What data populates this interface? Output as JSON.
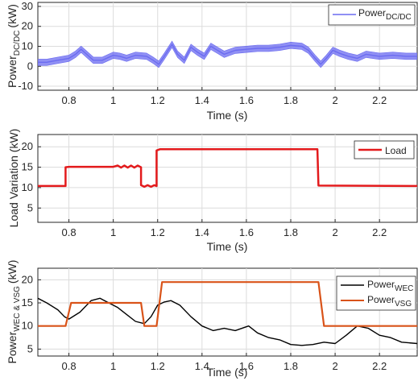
{
  "colors": {
    "blue": "#6b6bf0",
    "red": "#e31a1c",
    "black": "#000000",
    "orange": "#d95319"
  },
  "chart_data": [
    {
      "type": "line",
      "xlabel": "Time (s)",
      "ylabel_main": "Power",
      "ylabel_sub": "DC/DC",
      "ylabel_unit": "(kW)",
      "xlim": [
        0.66,
        2.37
      ],
      "ylim": [
        -12,
        32
      ],
      "xticks": [
        0.8,
        1,
        1.2,
        1.4,
        1.6,
        1.8,
        2,
        2.2
      ],
      "xtick_labels": [
        "0.8",
        "1",
        "1.2",
        "1.4",
        "1.6",
        "1.8",
        "2",
        "2.2"
      ],
      "yticks": [
        -10,
        0,
        10,
        20,
        30
      ],
      "ytick_labels": [
        "-10",
        "0",
        "10",
        "20",
        "30"
      ],
      "grid": true,
      "legend": "top-right",
      "series": [
        {
          "name_main": "Power",
          "name_sub": "DC/DC",
          "color": "#6b6bf0",
          "band": 1.6,
          "x": [
            0.66,
            0.7,
            0.75,
            0.8,
            0.83,
            0.855,
            0.88,
            0.91,
            0.95,
            1.0,
            1.03,
            1.06,
            1.1,
            1.15,
            1.18,
            1.205,
            1.23,
            1.265,
            1.29,
            1.32,
            1.35,
            1.38,
            1.41,
            1.44,
            1.47,
            1.5,
            1.55,
            1.6,
            1.65,
            1.7,
            1.75,
            1.8,
            1.85,
            1.88,
            1.91,
            1.935,
            1.96,
            1.99,
            2.02,
            2.06,
            2.1,
            2.14,
            2.2,
            2.26,
            2.32,
            2.37
          ],
          "y": [
            2,
            2,
            3,
            4,
            6,
            8.5,
            6,
            3,
            3,
            5.5,
            5,
            4,
            5.5,
            5,
            3,
            1,
            5,
            11,
            6,
            3,
            9.5,
            7,
            5,
            10,
            8,
            6,
            8,
            8.5,
            9,
            9,
            9.5,
            10.5,
            10,
            8,
            4,
            1,
            4,
            8,
            6.5,
            5,
            4,
            6,
            5,
            5.5,
            5,
            5
          ]
        }
      ]
    },
    {
      "type": "line",
      "xlabel": "Time (s)",
      "ylabel": "Load Variation (kW)",
      "xlim": [
        0.66,
        2.37
      ],
      "ylim": [
        1.5,
        23
      ],
      "xticks": [
        0.8,
        1,
        1.2,
        1.4,
        1.6,
        1.8,
        2,
        2.2
      ],
      "xtick_labels": [
        "0.8",
        "1",
        "1.2",
        "1.4",
        "1.6",
        "1.8",
        "2",
        "2.2"
      ],
      "yticks": [
        5,
        10,
        15,
        20
      ],
      "ytick_labels": [
        "5",
        "10",
        "15",
        "20"
      ],
      "grid": true,
      "legend": "top-right",
      "series": [
        {
          "name": "Load",
          "color": "#e31a1c",
          "x": [
            0.66,
            0.785,
            0.785,
            0.8,
            1.0,
            1.02,
            1.035,
            1.05,
            1.065,
            1.08,
            1.095,
            1.11,
            1.125,
            1.125,
            1.14,
            1.155,
            1.17,
            1.185,
            1.195,
            1.195,
            1.21,
            1.5,
            1.92,
            1.925,
            2.37
          ],
          "y": [
            10.4,
            10.4,
            15,
            15.1,
            15.1,
            15.4,
            14.9,
            15.4,
            14.9,
            15.4,
            14.9,
            15.4,
            15,
            10.6,
            10.2,
            10.6,
            10.2,
            10.6,
            10.4,
            19.1,
            19.4,
            19.4,
            19.4,
            10.5,
            10.4
          ]
        }
      ]
    },
    {
      "type": "line",
      "xlabel": "Time (s)",
      "ylabel_main": "Power",
      "ylabel_sub": "WEC & VSG",
      "ylabel_unit": "(kW)",
      "xlim": [
        0.66,
        2.37
      ],
      "ylim": [
        3.5,
        22.5
      ],
      "xticks": [
        0.8,
        1,
        1.2,
        1.4,
        1.6,
        1.8,
        2,
        2.2
      ],
      "xtick_labels": [
        "0.8",
        "1",
        "1.2",
        "1.4",
        "1.6",
        "1.8",
        "2",
        "2.2"
      ],
      "yticks": [
        5,
        10,
        15,
        20
      ],
      "ytick_labels": [
        "5",
        "10",
        "15",
        "20"
      ],
      "grid": true,
      "legend": "top-right",
      "series": [
        {
          "name_main": "Power",
          "name_sub": "WEC",
          "color": "#000000",
          "x": [
            0.66,
            0.7,
            0.75,
            0.78,
            0.8,
            0.85,
            0.9,
            0.94,
            0.98,
            1.02,
            1.06,
            1.1,
            1.14,
            1.17,
            1.2,
            1.23,
            1.26,
            1.3,
            1.35,
            1.4,
            1.45,
            1.5,
            1.55,
            1.58,
            1.61,
            1.65,
            1.7,
            1.75,
            1.8,
            1.85,
            1.9,
            1.95,
            2.0,
            2.05,
            2.1,
            2.15,
            2.2,
            2.25,
            2.3,
            2.37
          ],
          "y": [
            16,
            15,
            13.5,
            12,
            11.5,
            13,
            15.5,
            16,
            15,
            14,
            12.5,
            11,
            10.5,
            12,
            14.5,
            15.2,
            15.5,
            14.5,
            12,
            10,
            9,
            9.5,
            9,
            9.5,
            10,
            8.5,
            7.5,
            7,
            6,
            5.8,
            6,
            6.5,
            6.2,
            8,
            10,
            9.5,
            8,
            7.5,
            6.5,
            6.2
          ]
        },
        {
          "name_main": "Power",
          "name_sub": "VSG",
          "color": "#d95319",
          "x": [
            0.66,
            0.785,
            0.81,
            0.9,
            1.0,
            1.1,
            1.125,
            1.14,
            1.19,
            1.195,
            1.22,
            1.3,
            1.5,
            1.7,
            1.9,
            1.925,
            1.95,
            2.0,
            2.2,
            2.37
          ],
          "y": [
            10,
            10,
            15,
            15,
            15,
            15,
            15,
            10,
            10,
            10,
            19.5,
            19.5,
            19.5,
            19.5,
            19.5,
            19.5,
            10,
            10,
            10,
            10
          ]
        }
      ]
    }
  ]
}
